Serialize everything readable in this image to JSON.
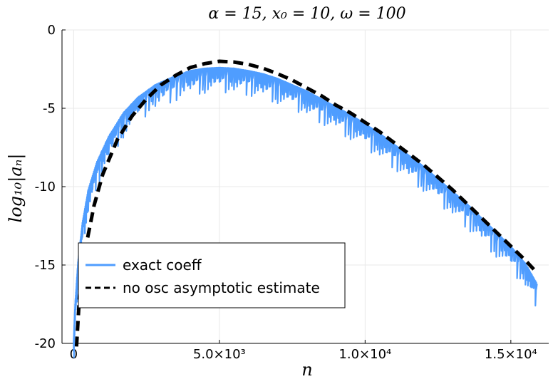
{
  "chart_data": {
    "type": "line",
    "title": "α = 15, x₀ = 10, ω = 100",
    "xlabel": "n",
    "ylabel": "log₁₀|aₙ|",
    "xlim": [
      -400,
      16300
    ],
    "ylim": [
      -20,
      0
    ],
    "xticks": [
      0,
      5000,
      10000,
      15000
    ],
    "xtick_labels": [
      "0",
      "5.0×10³",
      "1.0×10⁴",
      "1.5×10⁴"
    ],
    "yticks": [
      0,
      -5,
      -10,
      -15,
      -20
    ],
    "ytick_labels": [
      "0",
      "-5",
      "-10",
      "-15",
      "-20"
    ],
    "grid": true,
    "legend_position": "bottom-left",
    "series": [
      {
        "name": "exact coeff",
        "color": "#4f9dff",
        "style": "solid",
        "x": [
          0,
          50,
          150,
          300,
          500,
          800,
          1200,
          1700,
          2200,
          2800,
          3400,
          4000,
          4500,
          5000,
          5500,
          6000,
          6500,
          7000,
          7500,
          8000,
          8500,
          9000,
          9500,
          10000,
          10500,
          11000,
          11500,
          12000,
          12500,
          13000,
          13500,
          14000,
          14500,
          15000,
          15500,
          15900
        ],
        "values": [
          -19.8,
          -17.5,
          -14.8,
          -12.3,
          -10.2,
          -8.4,
          -6.8,
          -5.3,
          -4.3,
          -3.5,
          -3.0,
          -2.6,
          -2.45,
          -2.4,
          -2.45,
          -2.6,
          -2.8,
          -3.1,
          -3.5,
          -3.9,
          -4.4,
          -4.9,
          -5.4,
          -6.0,
          -6.6,
          -7.3,
          -8.0,
          -8.7,
          -9.5,
          -10.3,
          -11.1,
          -12.0,
          -12.9,
          -13.8,
          -14.9,
          -16.2
        ]
      },
      {
        "name": "no osc asymptotic estimate",
        "color": "#000000",
        "style": "dashed",
        "x": [
          100,
          200,
          400,
          700,
          1000,
          1500,
          2000,
          2500,
          3000,
          3500,
          4000,
          4500,
          5000,
          5500,
          6000,
          6500,
          7000,
          7500,
          8000,
          8500,
          9000,
          9500,
          10000,
          10500,
          11000,
          11500,
          12000,
          12500,
          13000,
          13500,
          14000,
          14500,
          15000,
          15500,
          15900
        ],
        "values": [
          -20.2,
          -17.0,
          -14.0,
          -11.2,
          -9.2,
          -7.0,
          -5.5,
          -4.4,
          -3.5,
          -2.9,
          -2.4,
          -2.15,
          -2.0,
          -2.05,
          -2.2,
          -2.45,
          -2.8,
          -3.2,
          -3.7,
          -4.2,
          -4.8,
          -5.3,
          -5.9,
          -6.5,
          -7.2,
          -7.9,
          -8.6,
          -9.4,
          -10.2,
          -11.1,
          -12.0,
          -12.9,
          -13.8,
          -14.7,
          -15.5
        ]
      }
    ]
  }
}
